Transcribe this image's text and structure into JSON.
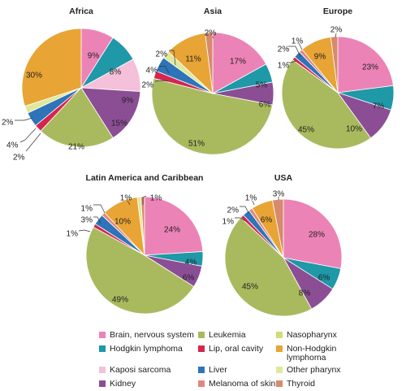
{
  "colors": {
    "brain": "#ec83b6",
    "hodgkin": "#1f98a8",
    "kaposi": "#f5c0d9",
    "kidney": "#8b4e94",
    "leukemia": "#a9ba5e",
    "lip": "#d5264f",
    "liver": "#2d74b9",
    "melanoma": "#e3877c",
    "nasopharynx": "#cfdc78",
    "nhl": "#e8a434",
    "other_pharynx": "#dfe89b",
    "thyroid": "#d78a6e"
  },
  "legend": [
    {
      "key": "brain",
      "label": "Brain, nervous system"
    },
    {
      "key": "leukemia",
      "label": "Leukemia"
    },
    {
      "key": "nasopharynx",
      "label": "Nasopharynx"
    },
    {
      "key": "hodgkin",
      "label": "Hodgkin lymphoma"
    },
    {
      "key": "lip",
      "label": "Lip, oral cavity"
    },
    {
      "key": "nhl",
      "label": "Non-Hodgkin\nlymphoma"
    },
    {
      "key": "kaposi",
      "label": "Kaposi sarcoma"
    },
    {
      "key": "liver",
      "label": "Liver"
    },
    {
      "key": "other_pharynx",
      "label": "Other pharynx"
    },
    {
      "key": "kidney",
      "label": "Kidney"
    },
    {
      "key": "melanoma",
      "label": "Melanoma of skin"
    },
    {
      "key": "thyroid",
      "label": "Thyroid"
    }
  ],
  "chart_data": [
    {
      "type": "pie",
      "title": "Africa",
      "slices": [
        {
          "key": "brain",
          "value": 9,
          "label": "9%"
        },
        {
          "key": "hodgkin",
          "value": 8,
          "label": "8%"
        },
        {
          "key": "kaposi",
          "value": 9,
          "label": "9%"
        },
        {
          "key": "kidney",
          "value": 15,
          "label": "15%"
        },
        {
          "key": "leukemia",
          "value": 21,
          "label": "21%"
        },
        {
          "key": "lip",
          "value": 2,
          "label": "2%"
        },
        {
          "key": "liver",
          "value": 4,
          "label": "4%"
        },
        {
          "key": "other_pharynx",
          "value": 2,
          "label": "2%"
        },
        {
          "key": "nhl",
          "value": 30,
          "label": "30%"
        }
      ]
    },
    {
      "type": "pie",
      "title": "Asia",
      "slices": [
        {
          "key": "brain",
          "value": 17,
          "label": "17%"
        },
        {
          "key": "hodgkin",
          "value": 5,
          "label": "5%"
        },
        {
          "key": "kidney",
          "value": 6,
          "label": "6%"
        },
        {
          "key": "leukemia",
          "value": 51,
          "label": "51%"
        },
        {
          "key": "lip",
          "value": 2,
          "label": "2%"
        },
        {
          "key": "liver",
          "value": 4,
          "label": "4%"
        },
        {
          "key": "other_pharynx",
          "value": 2,
          "label": "2%"
        },
        {
          "key": "nhl",
          "value": 11,
          "label": "11%"
        },
        {
          "key": "thyroid",
          "value": 2,
          "label": "2%"
        }
      ]
    },
    {
      "type": "pie",
      "title": "Europe",
      "slices": [
        {
          "key": "brain",
          "value": 23,
          "label": "23%"
        },
        {
          "key": "hodgkin",
          "value": 7,
          "label": "7%"
        },
        {
          "key": "kidney",
          "value": 10,
          "label": "10%"
        },
        {
          "key": "leukemia",
          "value": 45,
          "label": "45%"
        },
        {
          "key": "lip",
          "value": 1,
          "label": "1%"
        },
        {
          "key": "liver",
          "value": 2,
          "label": "2%"
        },
        {
          "key": "melanoma",
          "value": 1,
          "label": "1%"
        },
        {
          "key": "nhl",
          "value": 9,
          "label": "9%"
        },
        {
          "key": "thyroid",
          "value": 2,
          "label": "2%"
        }
      ]
    },
    {
      "type": "pie",
      "title": "Latin America and Caribbean",
      "slices": [
        {
          "key": "brain",
          "value": 24,
          "label": "24%"
        },
        {
          "key": "hodgkin",
          "value": 4,
          "label": "4%"
        },
        {
          "key": "kidney",
          "value": 6,
          "label": "6%"
        },
        {
          "key": "leukemia",
          "value": 49,
          "label": "49%"
        },
        {
          "key": "lip",
          "value": 1,
          "label": "1%"
        },
        {
          "key": "liver",
          "value": 3,
          "label": "3%"
        },
        {
          "key": "melanoma",
          "value": 1,
          "label": "1%"
        },
        {
          "key": "nhl",
          "value": 10,
          "label": "10%"
        },
        {
          "key": "other_pharynx",
          "value": 1,
          "label": "1%"
        },
        {
          "key": "thyroid",
          "value": 1,
          "label": "1%"
        }
      ]
    },
    {
      "type": "pie",
      "title": "USA",
      "slices": [
        {
          "key": "brain",
          "value": 28,
          "label": "28%"
        },
        {
          "key": "hodgkin",
          "value": 6,
          "label": "6%"
        },
        {
          "key": "kidney",
          "value": 8,
          "label": "8%"
        },
        {
          "key": "leukemia",
          "value": 45,
          "label": "45%"
        },
        {
          "key": "lip",
          "value": 1,
          "label": "1%"
        },
        {
          "key": "liver",
          "value": 2,
          "label": "2%"
        },
        {
          "key": "melanoma",
          "value": 1,
          "label": "1%"
        },
        {
          "key": "nhl",
          "value": 6,
          "label": "6%"
        },
        {
          "key": "thyroid",
          "value": 3,
          "label": "3%"
        }
      ]
    }
  ]
}
